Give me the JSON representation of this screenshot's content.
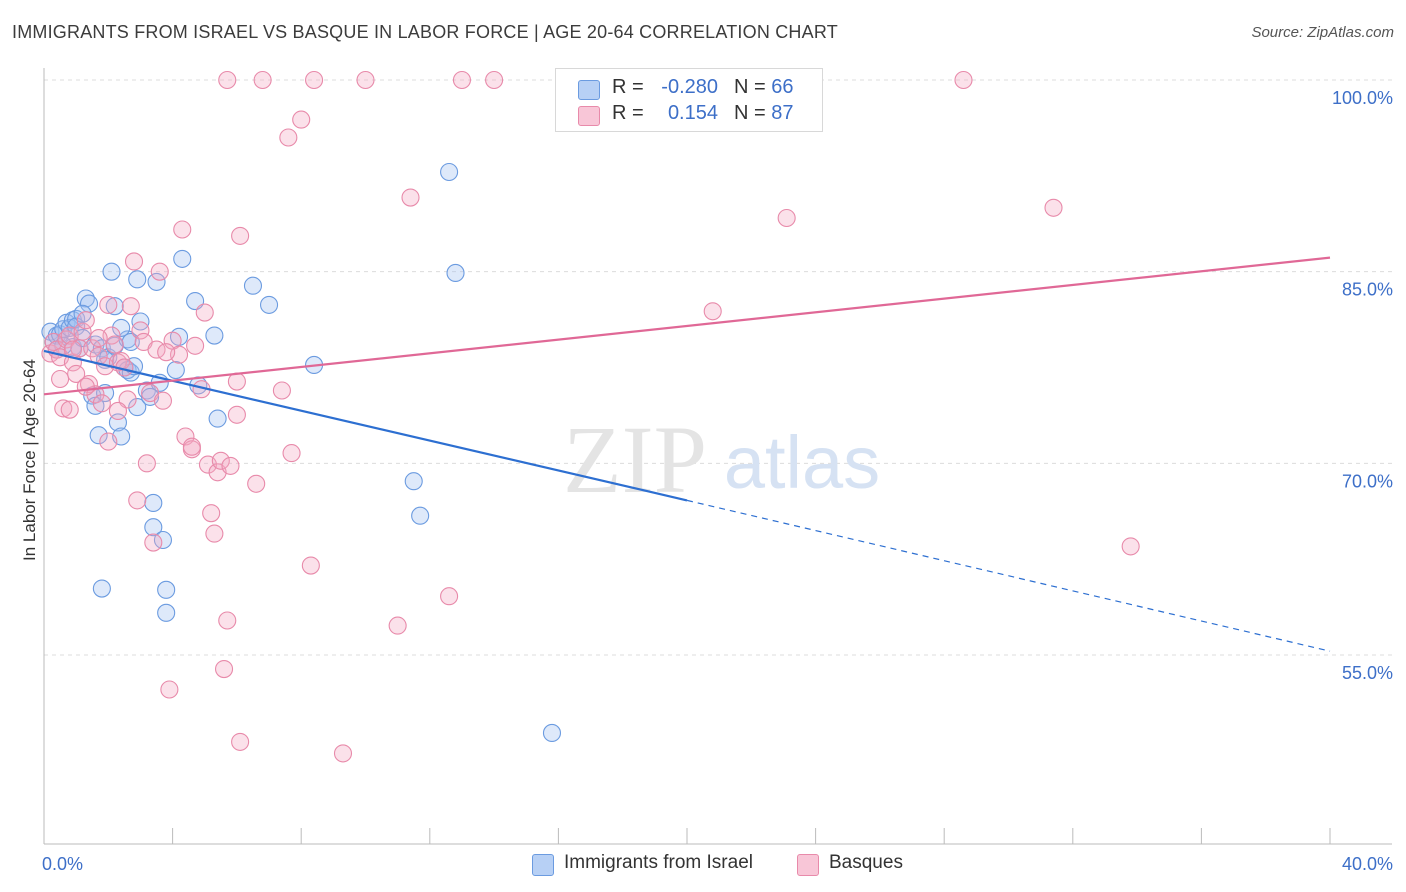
{
  "header": {
    "title": "IMMIGRANTS FROM ISRAEL VS BASQUE IN LABOR FORCE | AGE 20-64 CORRELATION CHART",
    "source": "Source: ZipAtlas.com"
  },
  "watermark": {
    "zip": "ZIP",
    "atlas": "atlas"
  },
  "legend": {
    "r_label": "R =",
    "n_label": "N =",
    "series": [
      {
        "r_value": "-0.280",
        "n_value": "66"
      },
      {
        "r_value": "0.154",
        "n_value": "87"
      }
    ]
  },
  "chart_data": {
    "type": "scatter",
    "title": "IMMIGRANTS FROM ISRAEL VS BASQUE IN LABOR FORCE | AGE 20-64 CORRELATION CHART",
    "xlabel": "",
    "ylabel": "In Labor Force | Age 20-64",
    "xlim": [
      0,
      40
    ],
    "ylim": [
      41,
      101
    ],
    "x_tick_labels": [
      {
        "value": 0,
        "label": "0.0%"
      },
      {
        "value": 40,
        "label": "40.0%"
      }
    ],
    "y_tick_labels": [
      {
        "value": 100,
        "label": "100.0%"
      },
      {
        "value": 85,
        "label": "85.0%"
      },
      {
        "value": 70,
        "label": "70.0%"
      },
      {
        "value": 55,
        "label": "55.0%"
      }
    ],
    "x_minor_ticks": [
      4,
      8,
      12,
      16,
      20,
      24,
      28,
      32,
      36
    ],
    "series": [
      {
        "name": "Immigrants from Israel",
        "color": "#6b9be0",
        "fill": "rgba(160,192,240,0.35)",
        "line_color": "#2d6fd1",
        "trend": {
          "x0": 0,
          "y0": 78.8,
          "x1": 20,
          "y1": 67.1,
          "dash_to_x": 40,
          "dash_to_y": 55.3
        },
        "points": [
          [
            0.2,
            80.3
          ],
          [
            0.3,
            79.5
          ],
          [
            0.4,
            80.0
          ],
          [
            0.4,
            78.9
          ],
          [
            0.5,
            80.1
          ],
          [
            0.6,
            80.5
          ],
          [
            0.7,
            81.0
          ],
          [
            0.8,
            80.6
          ],
          [
            0.9,
            81.2
          ],
          [
            0.9,
            79.1
          ],
          [
            1.0,
            81.3
          ],
          [
            1.0,
            80.7
          ],
          [
            1.1,
            79.0
          ],
          [
            1.2,
            79.8
          ],
          [
            1.3,
            82.9
          ],
          [
            1.4,
            82.5
          ],
          [
            1.5,
            75.3
          ],
          [
            1.6,
            74.5
          ],
          [
            1.6,
            79.3
          ],
          [
            1.7,
            72.2
          ],
          [
            1.8,
            79.0
          ],
          [
            1.9,
            78.1
          ],
          [
            1.9,
            75.5
          ],
          [
            2.0,
            78.3
          ],
          [
            2.1,
            85.0
          ],
          [
            2.2,
            82.3
          ],
          [
            2.2,
            79.2
          ],
          [
            2.3,
            73.2
          ],
          [
            2.4,
            72.1
          ],
          [
            2.5,
            77.5
          ],
          [
            2.6,
            79.7
          ],
          [
            2.6,
            77.3
          ],
          [
            2.7,
            77.1
          ],
          [
            2.8,
            77.6
          ],
          [
            2.9,
            84.4
          ],
          [
            2.9,
            74.4
          ],
          [
            3.0,
            81.1
          ],
          [
            3.2,
            75.7
          ],
          [
            3.3,
            75.2
          ],
          [
            3.4,
            66.9
          ],
          [
            3.4,
            65.0
          ],
          [
            3.5,
            84.2
          ],
          [
            3.6,
            76.3
          ],
          [
            3.7,
            64.0
          ],
          [
            3.8,
            60.1
          ],
          [
            3.8,
            58.3
          ],
          [
            4.1,
            77.3
          ],
          [
            4.2,
            79.9
          ],
          [
            4.3,
            86.0
          ],
          [
            4.7,
            82.7
          ],
          [
            4.8,
            76.1
          ],
          [
            5.3,
            80.0
          ],
          [
            5.4,
            73.5
          ],
          [
            6.5,
            83.9
          ],
          [
            7.0,
            82.4
          ],
          [
            8.4,
            77.7
          ],
          [
            11.5,
            68.6
          ],
          [
            11.7,
            65.9
          ],
          [
            12.6,
            92.8
          ],
          [
            12.8,
            84.9
          ],
          [
            15.8,
            48.9
          ],
          [
            2.4,
            80.6
          ],
          [
            1.2,
            81.7
          ],
          [
            0.6,
            79.2
          ],
          [
            1.8,
            60.2
          ],
          [
            2.7,
            79.5
          ]
        ]
      },
      {
        "name": "Basques",
        "color": "#e88aaa",
        "fill": "rgba(244,170,196,0.35)",
        "line_color": "#e06896",
        "trend": {
          "x0": 0,
          "y0": 75.4,
          "x1": 40,
          "y1": 86.1
        },
        "points": [
          [
            0.2,
            78.6
          ],
          [
            0.3,
            79.5
          ],
          [
            0.4,
            78.9
          ],
          [
            0.5,
            78.3
          ],
          [
            0.5,
            76.6
          ],
          [
            0.6,
            74.3
          ],
          [
            0.7,
            79.7
          ],
          [
            0.8,
            80.0
          ],
          [
            0.8,
            74.2
          ],
          [
            0.9,
            77.9
          ],
          [
            1.0,
            77.0
          ],
          [
            1.1,
            79.0
          ],
          [
            1.2,
            80.3
          ],
          [
            1.3,
            81.2
          ],
          [
            1.4,
            76.2
          ],
          [
            1.5,
            79.0
          ],
          [
            1.6,
            75.4
          ],
          [
            1.7,
            78.4
          ],
          [
            1.8,
            74.7
          ],
          [
            1.9,
            77.6
          ],
          [
            2.0,
            71.7
          ],
          [
            2.1,
            80.0
          ],
          [
            2.2,
            79.3
          ],
          [
            2.3,
            77.9
          ],
          [
            2.4,
            78.0
          ],
          [
            2.5,
            77.5
          ],
          [
            2.6,
            75.0
          ],
          [
            2.7,
            82.3
          ],
          [
            2.8,
            85.8
          ],
          [
            2.9,
            67.1
          ],
          [
            3.0,
            80.4
          ],
          [
            3.1,
            79.5
          ],
          [
            3.2,
            70.0
          ],
          [
            3.3,
            75.5
          ],
          [
            3.4,
            63.8
          ],
          [
            3.5,
            78.9
          ],
          [
            3.6,
            85.0
          ],
          [
            3.7,
            74.9
          ],
          [
            3.9,
            52.3
          ],
          [
            4.0,
            79.6
          ],
          [
            4.2,
            78.5
          ],
          [
            4.3,
            88.3
          ],
          [
            4.4,
            72.1
          ],
          [
            4.6,
            71.1
          ],
          [
            4.7,
            79.2
          ],
          [
            4.9,
            75.8
          ],
          [
            5.0,
            81.8
          ],
          [
            5.1,
            69.9
          ],
          [
            5.2,
            66.1
          ],
          [
            5.3,
            64.5
          ],
          [
            5.4,
            69.3
          ],
          [
            5.5,
            70.2
          ],
          [
            5.6,
            53.9
          ],
          [
            5.7,
            57.7
          ],
          [
            5.8,
            69.8
          ],
          [
            6.0,
            76.4
          ],
          [
            6.0,
            73.8
          ],
          [
            6.1,
            87.8
          ],
          [
            6.1,
            48.2
          ],
          [
            6.6,
            68.4
          ],
          [
            7.4,
            75.7
          ],
          [
            7.6,
            95.5
          ],
          [
            7.7,
            70.8
          ],
          [
            8.0,
            96.9
          ],
          [
            8.3,
            62.0
          ],
          [
            9.3,
            47.3
          ],
          [
            10.0,
            100.0
          ],
          [
            11.0,
            57.3
          ],
          [
            11.4,
            90.8
          ],
          [
            12.6,
            59.6
          ],
          [
            13.0,
            100.0
          ],
          [
            14.0,
            100.0
          ],
          [
            5.7,
            100.0
          ],
          [
            6.8,
            100.0
          ],
          [
            8.4,
            100.0
          ],
          [
            20.8,
            81.9
          ],
          [
            23.1,
            89.2
          ],
          [
            28.6,
            100.0
          ],
          [
            31.4,
            90.0
          ],
          [
            33.8,
            63.5
          ],
          [
            2.0,
            82.4
          ],
          [
            1.3,
            76.0
          ],
          [
            0.9,
            78.9
          ],
          [
            4.6,
            71.3
          ],
          [
            3.8,
            78.7
          ],
          [
            2.3,
            74.1
          ],
          [
            1.7,
            79.8
          ]
        ]
      }
    ],
    "legend_entries": [
      "Immigrants from Israel",
      "Basques"
    ]
  }
}
